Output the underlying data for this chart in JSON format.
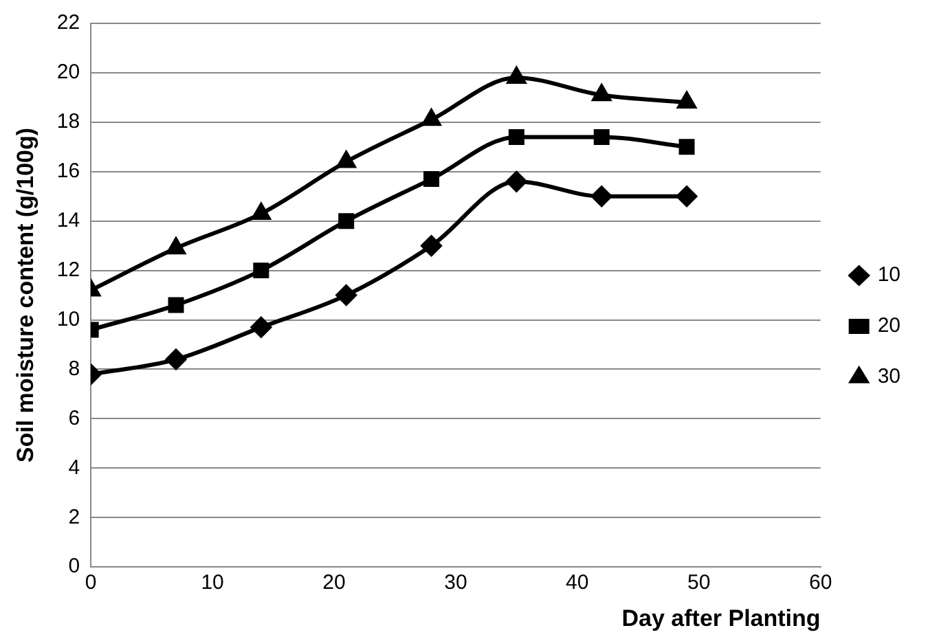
{
  "chart_data": {
    "type": "line",
    "xlabel": "Day after Planting",
    "ylabel": "Soil moisture content (g/100g)",
    "x": [
      0,
      7,
      14,
      21,
      28,
      35,
      42,
      49
    ],
    "series": [
      {
        "name": "10",
        "color": "#000000",
        "marker": "diamond",
        "values": [
          7.8,
          8.4,
          9.7,
          11.0,
          13.0,
          15.6,
          15.0,
          15.0
        ]
      },
      {
        "name": "20",
        "color": "#000000",
        "marker": "square",
        "values": [
          9.6,
          10.6,
          12.0,
          14.0,
          15.7,
          17.4,
          17.4,
          17.0
        ]
      },
      {
        "name": "30",
        "color": "#000000",
        "marker": "triangle",
        "values": [
          11.2,
          12.9,
          14.3,
          16.4,
          18.1,
          19.8,
          19.1,
          18.8
        ]
      }
    ],
    "xlim": [
      0,
      60
    ],
    "xticks": [
      0,
      10,
      20,
      30,
      40,
      50,
      60
    ],
    "ylim": [
      0,
      22
    ],
    "yticks": [
      0,
      2,
      4,
      6,
      8,
      10,
      12,
      14,
      16,
      18,
      20,
      22
    ],
    "grid": "y",
    "legend": "right",
    "line_style": "solid"
  }
}
